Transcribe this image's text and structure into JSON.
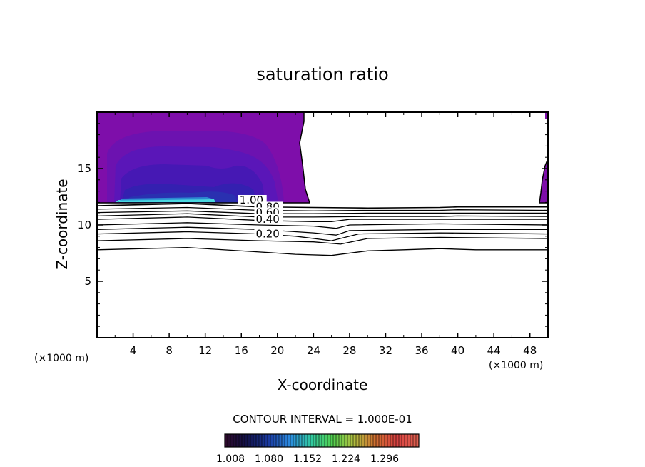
{
  "chart_data": {
    "type": "contour",
    "title": "saturation ratio",
    "xlabel": "X-coordinate",
    "ylabel": "Z-coordinate",
    "x_unit": "(×1000 m)",
    "y_unit": "(×1000 m)",
    "xlim": [
      0,
      50
    ],
    "ylim": [
      0,
      20
    ],
    "x_ticks": [
      "4",
      "8",
      "12",
      "16",
      "20",
      "24",
      "28",
      "32",
      "36",
      "40",
      "44",
      "48"
    ],
    "y_ticks": [
      "5",
      "10",
      "15"
    ],
    "contour_interval_text": "CONTOUR INTERVAL = 1.000E-01",
    "contour_labels": [
      {
        "value": "1.00",
        "x": 15.8,
        "z": 11.9
      },
      {
        "value": "0.80",
        "x": 17.6,
        "z": 11.3
      },
      {
        "value": "0.60",
        "x": 17.6,
        "z": 10.8
      },
      {
        "value": "0.40",
        "x": 17.6,
        "z": 10.2
      },
      {
        "value": "0.20",
        "x": 17.6,
        "z": 8.9
      }
    ],
    "contour_lines": [
      {
        "level": 1.0,
        "points": [
          [
            0,
            11.7
          ],
          [
            10,
            11.9
          ],
          [
            18,
            11.6
          ],
          [
            24,
            11.55
          ],
          [
            30,
            11.5
          ],
          [
            38,
            11.55
          ],
          [
            40,
            11.6
          ],
          [
            50,
            11.6
          ]
        ]
      },
      {
        "level": 0.9,
        "points": [
          [
            0,
            11.4
          ],
          [
            10,
            11.55
          ],
          [
            18,
            11.3
          ],
          [
            24,
            11.25
          ],
          [
            30,
            11.3
          ],
          [
            38,
            11.3
          ],
          [
            40,
            11.35
          ],
          [
            50,
            11.3
          ]
        ]
      },
      {
        "level": 0.8,
        "points": [
          [
            0,
            11.1
          ],
          [
            10,
            11.25
          ],
          [
            18,
            11.0
          ],
          [
            24,
            11.0
          ],
          [
            30,
            11.05
          ],
          [
            38,
            11.05
          ],
          [
            40,
            11.05
          ],
          [
            50,
            11.05
          ]
        ]
      },
      {
        "level": 0.7,
        "points": [
          [
            0,
            10.8
          ],
          [
            10,
            11.0
          ],
          [
            18,
            10.7
          ],
          [
            24,
            10.7
          ],
          [
            30,
            10.75
          ],
          [
            38,
            10.75
          ],
          [
            40,
            10.8
          ],
          [
            50,
            10.75
          ]
        ]
      },
      {
        "level": 0.6,
        "points": [
          [
            0,
            10.5
          ],
          [
            10,
            10.7
          ],
          [
            18,
            10.4
          ],
          [
            24,
            10.3
          ],
          [
            26,
            10.3
          ],
          [
            28,
            10.5
          ],
          [
            38,
            10.5
          ],
          [
            50,
            10.5
          ]
        ]
      },
      {
        "level": 0.5,
        "points": [
          [
            0,
            10.0
          ],
          [
            10,
            10.2
          ],
          [
            18,
            10.0
          ],
          [
            24,
            9.9
          ],
          [
            26.5,
            9.7
          ],
          [
            28,
            10.0
          ],
          [
            38,
            10.1
          ],
          [
            50,
            10.0
          ]
        ]
      },
      {
        "level": 0.4,
        "points": [
          [
            0,
            9.6
          ],
          [
            10,
            9.8
          ],
          [
            18,
            9.6
          ],
          [
            24,
            9.3
          ],
          [
            26.5,
            9.1
          ],
          [
            28,
            9.5
          ],
          [
            38,
            9.6
          ],
          [
            50,
            9.6
          ]
        ]
      },
      {
        "level": 0.3,
        "points": [
          [
            0,
            9.2
          ],
          [
            10,
            9.4
          ],
          [
            18,
            9.2
          ],
          [
            22,
            9.0
          ],
          [
            26,
            8.6
          ],
          [
            29,
            9.2
          ],
          [
            38,
            9.3
          ],
          [
            50,
            9.2
          ]
        ]
      },
      {
        "level": 0.2,
        "points": [
          [
            0,
            8.6
          ],
          [
            10,
            8.8
          ],
          [
            18,
            8.6
          ],
          [
            24,
            8.5
          ],
          [
            27,
            8.3
          ],
          [
            30,
            8.8
          ],
          [
            38,
            8.9
          ],
          [
            50,
            8.8
          ]
        ]
      },
      {
        "level": 0.1,
        "points": [
          [
            0,
            7.8
          ],
          [
            10,
            8.0
          ],
          [
            18,
            7.6
          ],
          [
            22,
            7.4
          ],
          [
            26,
            7.3
          ],
          [
            30,
            7.7
          ],
          [
            34,
            7.8
          ],
          [
            38,
            7.9
          ],
          [
            42,
            7.8
          ],
          [
            50,
            7.8
          ]
        ]
      }
    ],
    "filled_regions": [
      {
        "name": "supersaturated-left",
        "x_range": [
          0,
          23.3
        ],
        "z_range": [
          11.9,
          20
        ]
      },
      {
        "name": "supersaturated-right",
        "x_range": [
          49.2,
          50
        ],
        "z_range": [
          11.9,
          16.5
        ]
      }
    ],
    "colorbar": {
      "tick_labels": [
        "1.008",
        "1.080",
        "1.152",
        "1.224",
        "1.296"
      ],
      "colors": [
        "#2b0a2b",
        "#12124a",
        "#1a3aa0",
        "#2a8ae0",
        "#30c8a0",
        "#50d050",
        "#b0c040",
        "#d07030",
        "#d84040",
        "#e06050"
      ]
    },
    "colors": {
      "fill_base": "#7a10a8",
      "fill_mid": "#5a18b8",
      "fill_deep": "#3a1aa8",
      "fill_core": "#2830a8",
      "fill_peak": "#50e8d8"
    }
  }
}
